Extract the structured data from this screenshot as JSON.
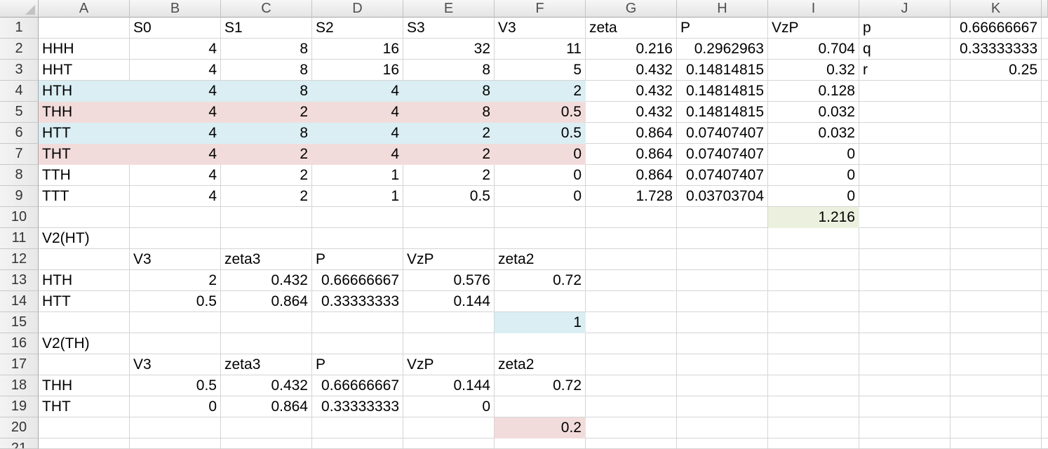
{
  "columns": [
    "A",
    "B",
    "C",
    "D",
    "E",
    "F",
    "G",
    "H",
    "I",
    "J",
    "K"
  ],
  "rows": [
    {
      "num": "1",
      "cells": [
        "",
        "S0",
        "S1",
        "S2",
        "S3",
        "V3",
        "zeta",
        "P",
        "VzP",
        "p",
        "0.66666667"
      ]
    },
    {
      "num": "2",
      "cells": [
        "HHH",
        "4",
        "8",
        "16",
        "32",
        "11",
        "0.216",
        "0.2962963",
        "0.704",
        "q",
        "0.33333333"
      ]
    },
    {
      "num": "3",
      "cells": [
        "HHT",
        "4",
        "8",
        "16",
        "8",
        "5",
        "0.432",
        "0.14814815",
        "0.32",
        "r",
        "0.25"
      ]
    },
    {
      "num": "4",
      "cells": [
        "HTH",
        "4",
        "8",
        "4",
        "8",
        "2",
        "0.432",
        "0.14814815",
        "0.128",
        "",
        ""
      ]
    },
    {
      "num": "5",
      "cells": [
        "THH",
        "4",
        "2",
        "4",
        "8",
        "0.5",
        "0.432",
        "0.14814815",
        "0.032",
        "",
        ""
      ]
    },
    {
      "num": "6",
      "cells": [
        "HTT",
        "4",
        "8",
        "4",
        "2",
        "0.5",
        "0.864",
        "0.07407407",
        "0.032",
        "",
        ""
      ]
    },
    {
      "num": "7",
      "cells": [
        "THT",
        "4",
        "2",
        "4",
        "2",
        "0",
        "0.864",
        "0.07407407",
        "0",
        "",
        ""
      ]
    },
    {
      "num": "8",
      "cells": [
        "TTH",
        "4",
        "2",
        "1",
        "2",
        "0",
        "0.864",
        "0.07407407",
        "0",
        "",
        ""
      ]
    },
    {
      "num": "9",
      "cells": [
        "TTT",
        "4",
        "2",
        "1",
        "0.5",
        "0",
        "1.728",
        "0.03703704",
        "0",
        "",
        ""
      ]
    },
    {
      "num": "10",
      "cells": [
        "",
        "",
        "",
        "",
        "",
        "",
        "",
        "",
        "1.216",
        "",
        ""
      ]
    },
    {
      "num": "11",
      "cells": [
        "V2(HT)",
        "",
        "",
        "",
        "",
        "",
        "",
        "",
        "",
        "",
        ""
      ]
    },
    {
      "num": "12",
      "cells": [
        "",
        "V3",
        "zeta3",
        "P",
        "VzP",
        "zeta2",
        "",
        "",
        "",
        "",
        ""
      ]
    },
    {
      "num": "13",
      "cells": [
        "HTH",
        "2",
        "0.432",
        "0.66666667",
        "0.576",
        "0.72",
        "",
        "",
        "",
        "",
        ""
      ]
    },
    {
      "num": "14",
      "cells": [
        "HTT",
        "0.5",
        "0.864",
        "0.33333333",
        "0.144",
        "",
        "",
        "",
        "",
        "",
        ""
      ]
    },
    {
      "num": "15",
      "cells": [
        "",
        "",
        "",
        "",
        "",
        "1",
        "",
        "",
        "",
        "",
        ""
      ]
    },
    {
      "num": "16",
      "cells": [
        "V2(TH)",
        "",
        "",
        "",
        "",
        "",
        "",
        "",
        "",
        "",
        ""
      ]
    },
    {
      "num": "17",
      "cells": [
        "",
        "V3",
        "zeta3",
        "P",
        "VzP",
        "zeta2",
        "",
        "",
        "",
        "",
        ""
      ]
    },
    {
      "num": "18",
      "cells": [
        "THH",
        "0.5",
        "0.432",
        "0.66666667",
        "0.144",
        "0.72",
        "",
        "",
        "",
        "",
        ""
      ]
    },
    {
      "num": "19",
      "cells": [
        "THT",
        "0",
        "0.864",
        "0.33333333",
        "0",
        "",
        "",
        "",
        "",
        "",
        ""
      ]
    },
    {
      "num": "20",
      "cells": [
        "",
        "",
        "",
        "",
        "",
        "0.2",
        "",
        "",
        "",
        "",
        ""
      ]
    },
    {
      "num": "21",
      "cells": [
        "",
        "",
        "",
        "",
        "",
        "",
        "",
        "",
        "",
        "",
        ""
      ]
    }
  ],
  "fills": [
    {
      "range": "A4:F4",
      "color": "#DAEEF3"
    },
    {
      "range": "A5:F5",
      "color": "#F2DCDB"
    },
    {
      "range": "A6:F6",
      "color": "#DAEEF3"
    },
    {
      "range": "A7:F7",
      "color": "#F2DCDB"
    },
    {
      "range": "I10",
      "color": "#EBF1DE"
    },
    {
      "range": "F15",
      "color": "#DAEEF3"
    },
    {
      "range": "F20",
      "color": "#F2DCDB"
    }
  ]
}
